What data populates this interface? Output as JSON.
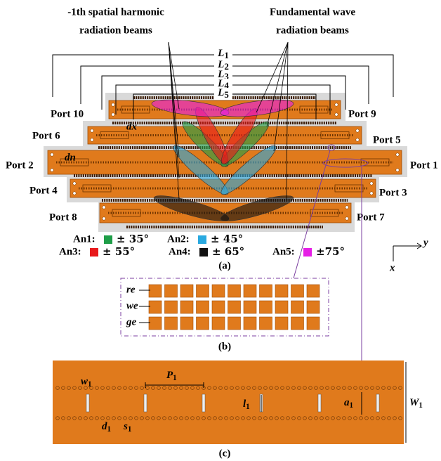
{
  "figure_a": {
    "left_heading": [
      "-1th spatial harmonic",
      "radiation beams"
    ],
    "right_heading": [
      "Fundamental wave",
      "radiation beams"
    ],
    "dimensions": [
      {
        "symbol": "L",
        "subscript": "1"
      },
      {
        "symbol": "L",
        "subscript": "2"
      },
      {
        "symbol": "L",
        "subscript": "3"
      },
      {
        "symbol": "L",
        "subscript": "4"
      },
      {
        "symbol": "L",
        "subscript": "5"
      }
    ],
    "ports": [
      "Port 10",
      "Port 9",
      "Port 6",
      "Port 5",
      "Port 2",
      "Port 1",
      "Port 4",
      "Port 3",
      "Port 8",
      "Port 7"
    ],
    "spacing_labels": [
      "dx",
      "dn"
    ],
    "legend": [
      {
        "name": "An1:",
        "color": "#1f9e48",
        "angle": "± 35°"
      },
      {
        "name": "An2:",
        "color": "#29a9e0",
        "angle": "± 45°"
      },
      {
        "name": "An3:",
        "color": "#e8191b",
        "angle": "± 55°"
      },
      {
        "name": "An4:",
        "color": "#111111",
        "angle": "± 65°"
      },
      {
        "name": "An5:",
        "color": "#e61ee6",
        "angle": "±75°"
      }
    ],
    "caption": "(a)"
  },
  "axes": {
    "horizontal": "y",
    "vertical": "x"
  },
  "figure_b": {
    "labels": [
      "re",
      "we",
      "ge"
    ],
    "caption": "(b)"
  },
  "figure_c": {
    "dimensions": [
      {
        "symbol": "w",
        "subscript": "1"
      },
      {
        "symbol": "P",
        "subscript": "1"
      },
      {
        "symbol": "l",
        "subscript": "1"
      },
      {
        "symbol": "a",
        "subscript": "1"
      },
      {
        "symbol": "W",
        "subscript": "1"
      },
      {
        "symbol": "d",
        "subscript": "1"
      },
      {
        "symbol": "s",
        "subscript": "1"
      }
    ],
    "caption": "(c)"
  }
}
